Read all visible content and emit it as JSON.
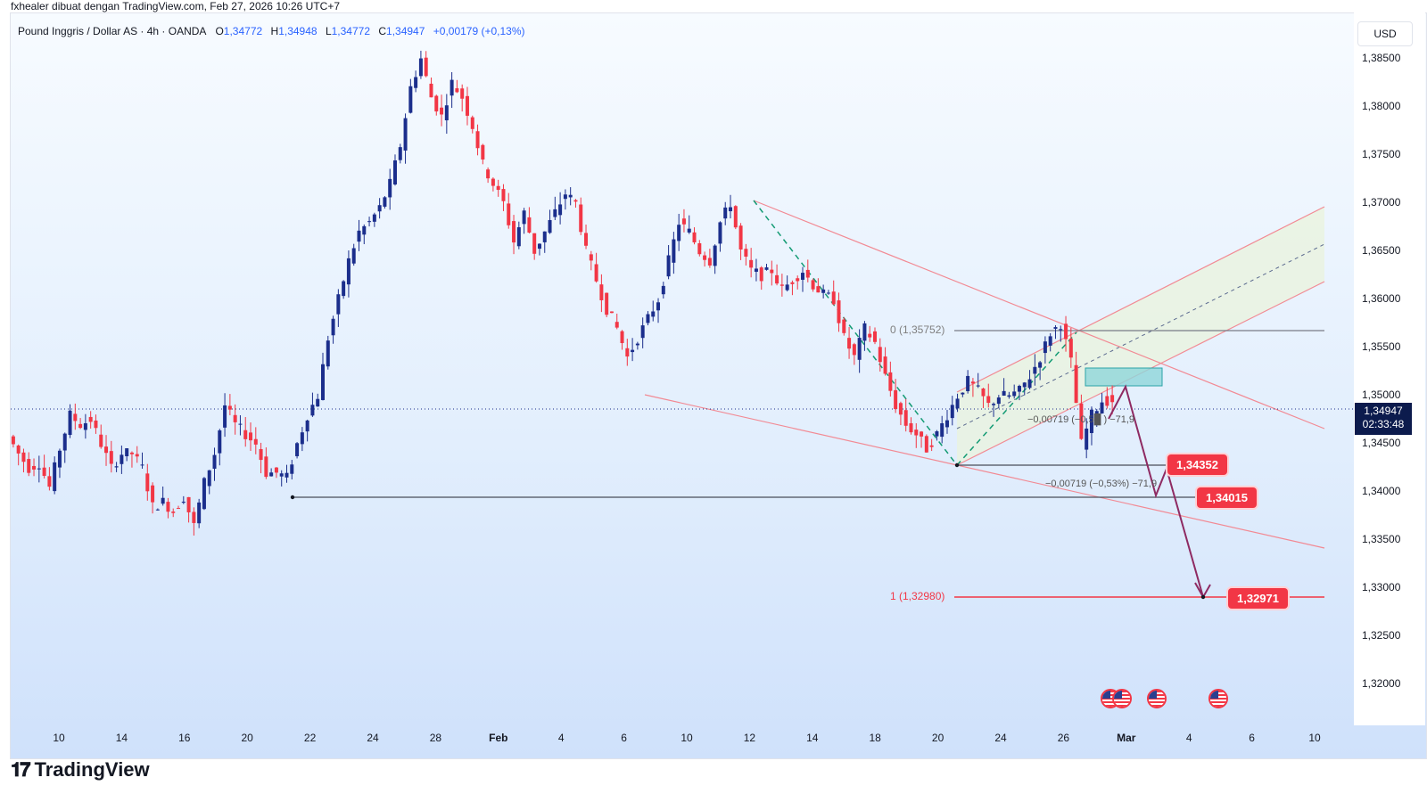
{
  "caption": "fxhealer dibuat dengan TradingView.com, Feb 27, 2026 10:26 UTC+7",
  "header": {
    "symbol": "Pound Inggris / Dollar AS · 4h · OANDA",
    "open_label": "O",
    "open": "1,34772",
    "high_label": "H",
    "high": "1,34948",
    "low_label": "L",
    "low": "1,34772",
    "close_label": "C",
    "close": "1,34947",
    "change": "+0,00179 (+0,13%)"
  },
  "currency_button": "USD",
  "current_price": {
    "price": "1,34947",
    "countdown": "02:33:48"
  },
  "annotations": {
    "fib_top": "0 (1,35752)",
    "fib_bottom": "1 (1,32980)",
    "measure_1": "−0,00719 (−0,5█ ) −71,9",
    "measure_2": "−0,00719 (−0,53%) −71,9",
    "target_1": "1,34352",
    "target_2": "1,34015",
    "target_3": "1,32971"
  },
  "brand": {
    "logo_text": "TradingView"
  },
  "colors": {
    "up": "#1b2e8c",
    "down": "#f23645",
    "accent": "#2962ff",
    "fib": "#f23645",
    "arrow": "#8e2a62"
  },
  "chart_data": {
    "type": "candlestick",
    "title": "Pound Inggris / Dollar AS · 4h · OANDA",
    "xlabel": "",
    "ylabel": "",
    "ylim": [
      1.318,
      1.3885
    ],
    "y_ticks": [
      "1,38500",
      "1,38000",
      "1,37500",
      "1,37000",
      "1,36500",
      "1,36000",
      "1,35500",
      "1,35000",
      "1,34500",
      "1,34000",
      "1,33500",
      "1,33000",
      "1,32500",
      "1,32000"
    ],
    "y_tick_values": [
      1.385,
      1.38,
      1.375,
      1.37,
      1.365,
      1.36,
      1.355,
      1.35,
      1.345,
      1.34,
      1.335,
      1.33,
      1.325,
      1.32
    ],
    "x_ticks": [
      "10",
      "14",
      "16",
      "20",
      "22",
      "24",
      "28",
      "Feb",
      "4",
      "6",
      "10",
      "12",
      "14",
      "18",
      "20",
      "24",
      "26",
      "Mar",
      "4",
      "6",
      "10"
    ],
    "x_tick_bold": [
      false,
      false,
      false,
      false,
      false,
      false,
      false,
      true,
      false,
      false,
      false,
      false,
      false,
      false,
      false,
      false,
      false,
      true,
      false,
      false,
      false
    ],
    "price_path": [
      1.3458,
      1.344,
      1.3425,
      1.343,
      1.3405,
      1.3445,
      1.348,
      1.347,
      1.3475,
      1.345,
      1.3425,
      1.344,
      1.344,
      1.3425,
      1.3385,
      1.339,
      1.338,
      1.3395,
      1.3365,
      1.341,
      1.344,
      1.349,
      1.347,
      1.346,
      1.345,
      1.342,
      1.342,
      1.3415,
      1.345,
      1.348,
      1.35,
      1.356,
      1.36,
      1.364,
      1.367,
      1.368,
      1.3695,
      1.372,
      1.376,
      1.382,
      1.385,
      1.381,
      1.379,
      1.3825,
      1.381,
      1.378,
      1.374,
      1.372,
      1.37,
      1.366,
      1.369,
      1.365,
      1.367,
      1.369,
      1.371,
      1.37,
      1.365,
      1.362,
      1.359,
      1.357,
      1.354,
      1.356,
      1.358,
      1.36,
      1.364,
      1.368,
      1.367,
      1.365,
      1.364,
      1.368,
      1.37,
      1.365,
      1.363,
      1.3625,
      1.363,
      1.361,
      1.362,
      1.363,
      1.3615,
      1.3605,
      1.36,
      1.356,
      1.354,
      1.357,
      1.3555,
      1.352,
      1.349,
      1.347,
      1.346,
      1.3445,
      1.346,
      1.348,
      1.35,
      1.3515,
      1.3505,
      1.349,
      1.35,
      1.35,
      1.3505,
      1.352,
      1.354,
      1.3565,
      1.3575,
      1.3535,
      1.345,
      1.348,
      1.3495
    ],
    "overlays": {
      "horizontal_levels": [
        1.35752,
        1.3298,
        1.34352,
        1.34015
      ],
      "fib_range": [
        1.35752,
        1.3298
      ],
      "projected_targets": [
        1.34352,
        1.34015,
        1.32971
      ]
    }
  }
}
